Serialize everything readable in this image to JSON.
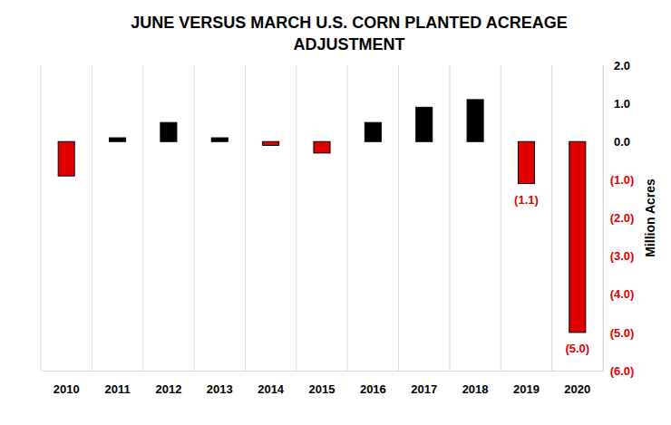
{
  "chart_data": {
    "type": "bar",
    "title": "JUNE VERSUS MARCH U.S. CORN PLANTED ACREAGE ADJUSTMENT",
    "y_label": "Million Acres",
    "categories": [
      "2010",
      "2011",
      "2012",
      "2013",
      "2014",
      "2015",
      "2016",
      "2017",
      "2018",
      "2019",
      "2020"
    ],
    "values": [
      -0.9,
      0.1,
      0.5,
      0.1,
      -0.1,
      -0.3,
      0.5,
      0.9,
      1.1,
      -1.1,
      -5.0
    ],
    "colors": [
      "#e00000",
      "#000000",
      "#000000",
      "#000000",
      "#e00000",
      "#e00000",
      "#000000",
      "#000000",
      "#000000",
      "#e00000",
      "#e00000"
    ],
    "data_labels": true,
    "value_labels": [
      null,
      null,
      null,
      null,
      null,
      null,
      null,
      null,
      null,
      "(1.1)",
      "(5.0)"
    ],
    "ylim": [
      -6,
      2
    ],
    "yticks": [
      {
        "value": -6,
        "label": "(6.0)"
      },
      {
        "value": -5,
        "label": "(5.0)"
      },
      {
        "value": -4,
        "label": "(4.0)"
      },
      {
        "value": -3,
        "label": "(3.0)"
      },
      {
        "value": -2,
        "label": "(2.0)"
      },
      {
        "value": -1,
        "label": "(1.0)"
      },
      {
        "value": 0,
        "label": "0.0"
      },
      {
        "value": 1,
        "label": "1.0"
      },
      {
        "value": 2,
        "label": "2.0"
      }
    ],
    "grid": true
  }
}
